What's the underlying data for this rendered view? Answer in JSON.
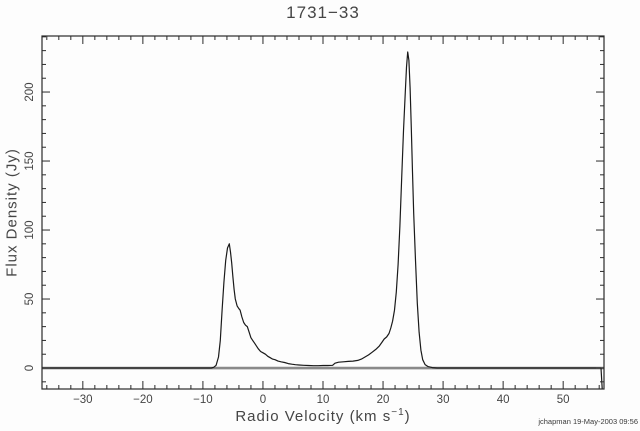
{
  "title": "1731−33",
  "credit": "jchapman 19-May-2003 09:56",
  "axis": {
    "xlabel_pre": "Radio Velocity (km s",
    "xlabel_sup": "−1",
    "xlabel_post": ")",
    "ylabel": "Flux Density (Jy)"
  },
  "chart_data": {
    "type": "line",
    "title": "1731−33",
    "xlabel": "Radio Velocity (km s^-1)",
    "ylabel": "Flux Density (Jy)",
    "xlim": [
      -36.8,
      56.8
    ],
    "ylim": [
      -15.2,
      240.6
    ],
    "grid": false,
    "legend": false,
    "x_major_ticks": [
      -30,
      -20,
      -10,
      0,
      10,
      20,
      30,
      40,
      50
    ],
    "x_tick_labels": [
      "−30",
      "−20",
      "−10",
      "0",
      "10",
      "20",
      "30",
      "40",
      "50"
    ],
    "x_minor_step": 2,
    "y_major_ticks": [
      0,
      50,
      100,
      150,
      200
    ],
    "y_tick_labels": [
      "0",
      "50",
      "100",
      "150",
      "200"
    ],
    "y_minor_step": 10,
    "zero_line": {
      "y": 0,
      "color": "#8a8a8a",
      "width": 2.6
    },
    "line_color": "#1a1a1a",
    "frame_color": "#2a2a2a",
    "peaks": [
      {
        "velocity": -5.6,
        "flux": 90
      },
      {
        "velocity": 24.1,
        "flux": 229
      }
    ],
    "points": [
      [
        -36.8,
        0
      ],
      [
        -34,
        0
      ],
      [
        -30,
        0
      ],
      [
        -26,
        0
      ],
      [
        -22,
        0
      ],
      [
        -18,
        0
      ],
      [
        -14,
        0
      ],
      [
        -11,
        0
      ],
      [
        -9.5,
        0
      ],
      [
        -8.6,
        0
      ],
      [
        -8.2,
        0.5
      ],
      [
        -7.8,
        2
      ],
      [
        -7.4,
        8
      ],
      [
        -7.1,
        20
      ],
      [
        -6.8,
        42
      ],
      [
        -6.5,
        62
      ],
      [
        -6.2,
        78
      ],
      [
        -5.9,
        87
      ],
      [
        -5.6,
        90
      ],
      [
        -5.4,
        84
      ],
      [
        -5.2,
        76
      ],
      [
        -5.0,
        66
      ],
      [
        -4.8,
        57
      ],
      [
        -4.6,
        50
      ],
      [
        -4.3,
        45
      ],
      [
        -4.0,
        43
      ],
      [
        -3.8,
        42
      ],
      [
        -3.5,
        37
      ],
      [
        -3.2,
        33
      ],
      [
        -2.9,
        31
      ],
      [
        -2.6,
        30
      ],
      [
        -2.3,
        26
      ],
      [
        -2.0,
        22
      ],
      [
        -1.7,
        20
      ],
      [
        -1.4,
        18
      ],
      [
        -1.1,
        16
      ],
      [
        -0.8,
        14
      ],
      [
        -0.4,
        12
      ],
      [
        0,
        11
      ],
      [
        0.4,
        10
      ],
      [
        0.8,
        8.5
      ],
      [
        1.2,
        7.5
      ],
      [
        1.6,
        6.5
      ],
      [
        2.0,
        6
      ],
      [
        2.5,
        5
      ],
      [
        3.0,
        4.5
      ],
      [
        3.6,
        4
      ],
      [
        4.2,
        3.2
      ],
      [
        4.8,
        2.8
      ],
      [
        5.4,
        2.4
      ],
      [
        6.0,
        2.2
      ],
      [
        6.8,
        2
      ],
      [
        7.6,
        1.8
      ],
      [
        8.4,
        1.7
      ],
      [
        9.2,
        1.7
      ],
      [
        10,
        1.8
      ],
      [
        10.8,
        1.8
      ],
      [
        11.6,
        2
      ],
      [
        12.0,
        3.5
      ],
      [
        12.6,
        4.2
      ],
      [
        13.4,
        4.5
      ],
      [
        14.2,
        4.8
      ],
      [
        15.0,
        5
      ],
      [
        15.8,
        5.5
      ],
      [
        16.4,
        6.5
      ],
      [
        17.0,
        8
      ],
      [
        17.6,
        9.5
      ],
      [
        18.2,
        11.5
      ],
      [
        18.8,
        13.5
      ],
      [
        19.4,
        16
      ],
      [
        19.8,
        18.5
      ],
      [
        20.2,
        21
      ],
      [
        20.6,
        22.5
      ],
      [
        21.0,
        25
      ],
      [
        21.3,
        29
      ],
      [
        21.6,
        34
      ],
      [
        21.9,
        42
      ],
      [
        22.2,
        55
      ],
      [
        22.5,
        75
      ],
      [
        22.8,
        103
      ],
      [
        23.1,
        138
      ],
      [
        23.4,
        172
      ],
      [
        23.7,
        200
      ],
      [
        23.9,
        218
      ],
      [
        24.1,
        229
      ],
      [
        24.3,
        223
      ],
      [
        24.5,
        203
      ],
      [
        24.7,
        174
      ],
      [
        24.9,
        142
      ],
      [
        25.1,
        112
      ],
      [
        25.4,
        78
      ],
      [
        25.7,
        47
      ],
      [
        26.0,
        26
      ],
      [
        26.3,
        13
      ],
      [
        26.6,
        6
      ],
      [
        27.0,
        2.5
      ],
      [
        27.5,
        1
      ],
      [
        28.2,
        0.3
      ],
      [
        29,
        0
      ],
      [
        31,
        0
      ],
      [
        34,
        0
      ],
      [
        38,
        0
      ],
      [
        42,
        0
      ],
      [
        46,
        0
      ],
      [
        50,
        0
      ],
      [
        53,
        0
      ],
      [
        55.5,
        0
      ],
      [
        56.3,
        0
      ],
      [
        56.5,
        -15
      ]
    ]
  }
}
